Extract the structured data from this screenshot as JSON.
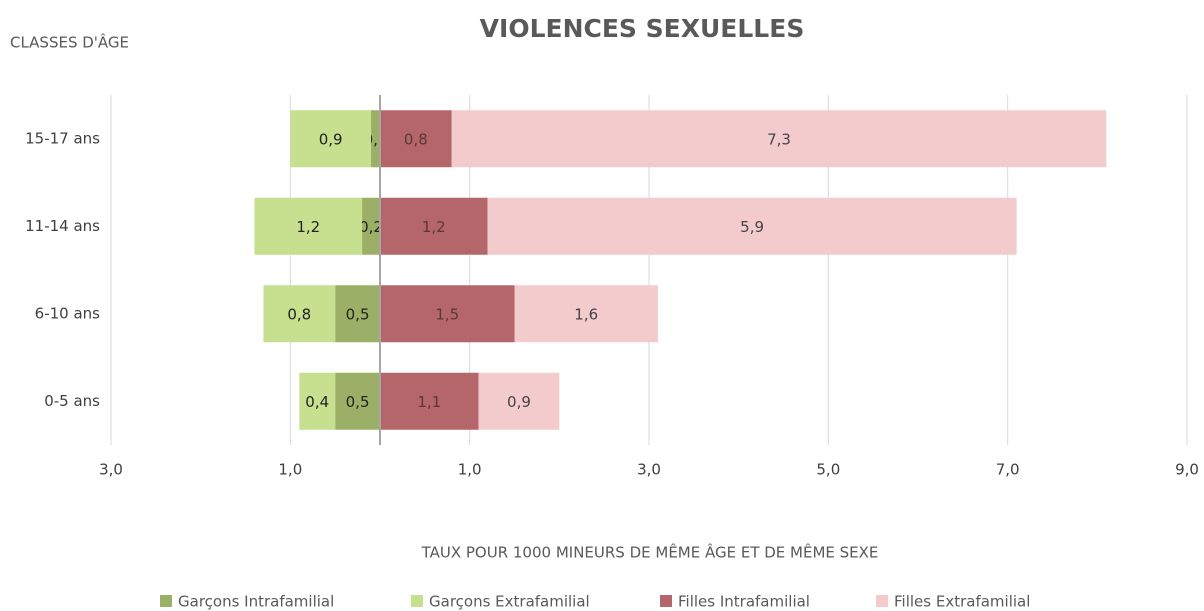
{
  "chart_data": {
    "type": "bar",
    "orientation": "horizontal",
    "stacked": true,
    "title": "VIOLENCES SEXUELLES",
    "y_label": "CLASSES D'ÂGE",
    "x_label": "TAUX POUR 1000 MINEURS DE MÊME ÂGE ET DE MÊME SEXE",
    "categories": [
      "15-17 ans",
      "11-14 ans",
      "6-10 ans",
      "0-5 ans"
    ],
    "series": [
      {
        "name": "Garçons Intrafamilial",
        "color": "#9bb066",
        "values": [
          -0.1,
          -0.2,
          -0.5,
          -0.5
        ],
        "value_labels": [
          "0,1",
          "0,2",
          "0,5",
          "0,5"
        ]
      },
      {
        "name": "Garçons Extrafamilial",
        "color": "#c6e08f",
        "values": [
          -0.9,
          -1.2,
          -0.8,
          -0.4
        ],
        "value_labels": [
          "0,9",
          "1,2",
          "0,8",
          "0,4"
        ]
      },
      {
        "name": "Filles Intrafamilial",
        "color": "#b5666a",
        "values": [
          0.8,
          1.2,
          1.5,
          1.1
        ],
        "value_labels": [
          "0,8",
          "1,2",
          "1,5",
          "1,1"
        ]
      },
      {
        "name": "Filles Extrafamilial",
        "color": "#f4cbcd",
        "values": [
          7.3,
          5.9,
          1.6,
          0.9
        ],
        "value_labels": [
          "7,3",
          "5,9",
          "1,6",
          "0,9"
        ]
      }
    ],
    "xlim": [
      -3,
      9
    ],
    "xticks": [
      {
        "value": -3,
        "label": "3,0"
      },
      {
        "value": -1,
        "label": "1,0"
      },
      {
        "value": 1,
        "label": "1,0"
      },
      {
        "value": 3,
        "label": "3,0"
      },
      {
        "value": 5,
        "label": "5,0"
      },
      {
        "value": 7,
        "label": "7,0"
      },
      {
        "value": 9,
        "label": "9,0"
      }
    ],
    "grid": true,
    "legend": "bottom"
  }
}
